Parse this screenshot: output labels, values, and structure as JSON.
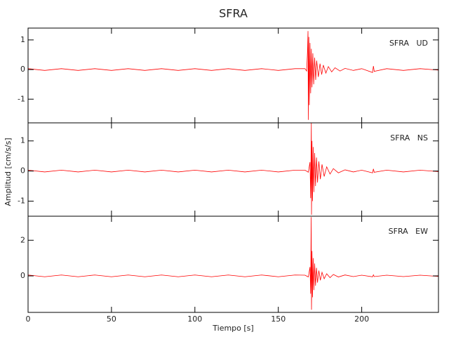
{
  "chart_data": [
    {
      "type": "line",
      "title": "SFRA",
      "label": "SFRA   UD",
      "color": "#ff0000",
      "x": [
        0,
        10,
        20,
        30,
        40,
        50,
        60,
        70,
        80,
        90,
        100,
        110,
        120,
        130,
        140,
        150,
        160,
        166,
        167,
        167.5,
        167.8,
        168,
        168.3,
        168.6,
        169,
        169.4,
        169.8,
        170.2,
        170.7,
        171.2,
        171.8,
        172.4,
        173,
        174,
        175,
        176,
        177,
        178.5,
        180,
        182,
        184,
        187,
        190,
        195,
        200,
        206.5,
        207,
        207.5,
        215,
        225,
        235,
        246
      ],
      "values": [
        0.03,
        -0.03,
        0.03,
        -0.03,
        0.03,
        -0.03,
        0.03,
        -0.03,
        0.03,
        -0.03,
        0.03,
        -0.03,
        0.03,
        -0.03,
        0.03,
        -0.03,
        0.03,
        0.03,
        -0.05,
        0.6,
        1.3,
        -1.7,
        1.1,
        -1.2,
        0.9,
        -0.8,
        0.7,
        -0.6,
        0.55,
        -0.5,
        0.4,
        -0.35,
        0.3,
        -0.25,
        0.2,
        -0.17,
        0.15,
        -0.12,
        0.1,
        -0.08,
        0.06,
        -0.05,
        0.04,
        -0.03,
        0.03,
        -0.1,
        0.12,
        -0.06,
        0.03,
        -0.03,
        0.03,
        -0.02
      ],
      "xlim": [
        0,
        246
      ],
      "ylim": [
        -1.8,
        1.4
      ],
      "xticks": [
        0,
        50,
        100,
        150,
        200
      ],
      "yticks": [
        -1,
        0,
        1
      ]
    },
    {
      "type": "line",
      "ylabel": "Amplitud [cm/s/s]",
      "label": "SFRA   NS",
      "color": "#ff0000",
      "x": [
        0,
        10,
        20,
        30,
        40,
        50,
        60,
        70,
        80,
        90,
        100,
        110,
        120,
        130,
        140,
        150,
        160,
        166,
        168,
        169,
        169.4,
        169.8,
        169.9,
        170.2,
        170.5,
        170.9,
        171.3,
        171.8,
        172.3,
        172.9,
        173.5,
        174.3,
        175.2,
        176.2,
        177.5,
        179,
        181,
        183,
        186,
        190,
        195,
        200,
        206.5,
        207,
        207.5,
        215,
        225,
        235,
        246
      ],
      "values": [
        0.03,
        -0.03,
        0.03,
        -0.03,
        0.03,
        -0.03,
        0.03,
        -0.03,
        0.03,
        -0.03,
        0.03,
        -0.03,
        0.03,
        -0.03,
        0.03,
        -0.03,
        0.03,
        0.03,
        -0.04,
        0.3,
        -0.9,
        1.6,
        -1.45,
        1.0,
        -1.0,
        0.8,
        -0.7,
        0.6,
        -0.5,
        0.45,
        -0.38,
        0.32,
        -0.27,
        0.22,
        -0.18,
        0.14,
        -0.1,
        0.08,
        -0.06,
        0.04,
        -0.03,
        0.03,
        -0.06,
        0.07,
        -0.04,
        0.03,
        -0.03,
        0.03,
        -0.02
      ],
      "xlim": [
        0,
        246
      ],
      "ylim": [
        -1.5,
        1.6
      ],
      "xticks": [
        0,
        50,
        100,
        150,
        200
      ],
      "yticks": [
        -1,
        0,
        1
      ]
    },
    {
      "type": "line",
      "xlabel": "Tiempo [s]",
      "label": "SFRA   EW",
      "color": "#ff0000",
      "x": [
        0,
        10,
        20,
        30,
        40,
        50,
        60,
        70,
        80,
        90,
        100,
        110,
        120,
        130,
        140,
        150,
        160,
        166,
        168,
        169,
        169.4,
        169.7,
        169.9,
        170.2,
        170.5,
        170.9,
        171.3,
        171.8,
        172.3,
        172.9,
        173.5,
        174.3,
        175.2,
        176.2,
        177.5,
        179,
        181,
        183,
        186,
        190,
        195,
        200,
        206.5,
        207,
        207.5,
        215,
        225,
        235,
        246
      ],
      "values": [
        0.05,
        -0.05,
        0.05,
        -0.05,
        0.05,
        -0.05,
        0.05,
        -0.05,
        0.05,
        -0.05,
        0.05,
        -0.05,
        0.05,
        -0.05,
        0.05,
        -0.05,
        0.05,
        0.04,
        -0.06,
        0.5,
        -1.0,
        3.3,
        -1.9,
        1.4,
        -1.2,
        1.0,
        -0.8,
        0.7,
        -0.55,
        0.45,
        -0.38,
        0.3,
        -0.25,
        0.2,
        -0.16,
        0.12,
        -0.1,
        0.08,
        -0.06,
        0.05,
        -0.04,
        0.04,
        -0.05,
        0.06,
        -0.04,
        0.04,
        -0.04,
        0.04,
        -0.03
      ],
      "xlim": [
        0,
        246
      ],
      "ylim": [
        -2.05,
        3.35
      ],
      "xticks": [
        0,
        50,
        100,
        150,
        200
      ],
      "yticks": [
        0,
        2
      ]
    }
  ]
}
